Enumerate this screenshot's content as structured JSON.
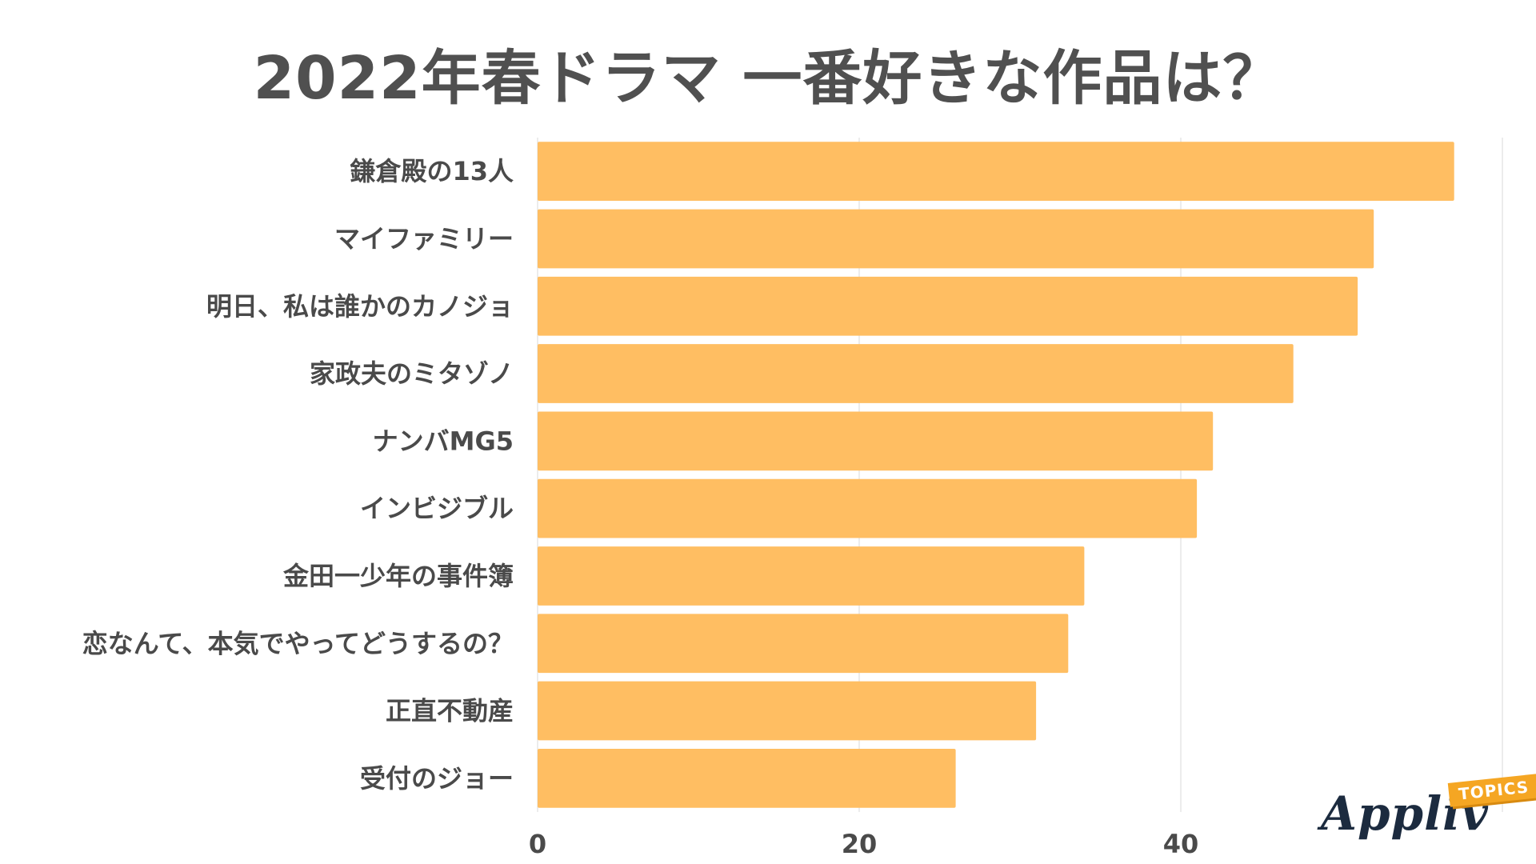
{
  "chart_data": {
    "type": "bar",
    "orientation": "horizontal",
    "title": "2022年春ドラマ 一番好きな作品は？",
    "categories": [
      "鎌倉殿の13人",
      "マイファミリー",
      "明日、私は誰かのカノジョ",
      "家政夫のミタゾノ",
      "ナンバMG5",
      "インビジブル",
      "金田一少年の事件簿",
      "恋なんて、本気でやってどうするの？",
      "正直不動産",
      "受付のジョー"
    ],
    "values": [
      57,
      52,
      51,
      47,
      42,
      41,
      34,
      33,
      31,
      26
    ],
    "xlim": [
      0,
      60
    ],
    "xticks": [
      0,
      20,
      40
    ],
    "grid": true,
    "bar_color": "#FFBE62",
    "grid_color": "#E6E6E6",
    "text_color": "#4A4A4A"
  },
  "logo": {
    "word": "Appliv",
    "tag": "TOPICS"
  }
}
